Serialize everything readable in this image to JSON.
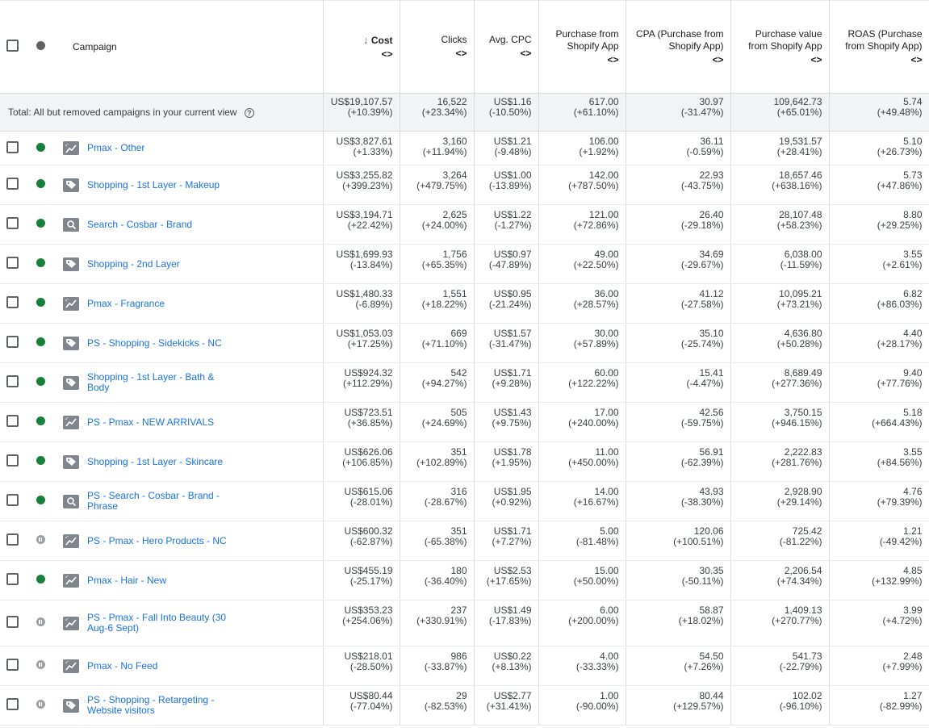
{
  "header": {
    "campaign": "Campaign",
    "sort_arrow": "↓",
    "sort_toggle": "<>",
    "columns": [
      "Cost",
      "Clicks",
      "Avg. CPC",
      "Purchase from Shopify App",
      "CPA (Purchase from Shopify App)",
      "Purchase value from Shopify App",
      "ROAS (Purchase from Shopify App)"
    ]
  },
  "total": {
    "label": "Total: All but removed campaigns in your current view",
    "help": "?",
    "values": [
      [
        "US$19,107.57",
        "(+10.39%)"
      ],
      [
        "16,522",
        "(+23.34%)"
      ],
      [
        "US$1.16",
        "(-10.50%)"
      ],
      [
        "617.00",
        "(+61.10%)"
      ],
      [
        "30.97",
        "(-31.47%)"
      ],
      [
        "109,642.73",
        "(+65.01%)"
      ],
      [
        "5.74",
        "(+49.48%)"
      ]
    ]
  },
  "rows": [
    {
      "name": "Pmax - Other",
      "status": "enabled",
      "type": "pmax",
      "values": [
        [
          "US$3,827.61",
          "(+1.33%)"
        ],
        [
          "3,160",
          "(+11.94%)"
        ],
        [
          "US$1.21",
          "(-9.48%)"
        ],
        [
          "106.00",
          "(+1.92%)"
        ],
        [
          "36.11",
          "(-0.59%)"
        ],
        [
          "19,531.57",
          "(+28.41%)"
        ],
        [
          "5.10",
          "(+26.73%)"
        ]
      ]
    },
    {
      "name": "Shopping - 1st Layer - Makeup",
      "status": "enabled",
      "type": "shopping",
      "values": [
        [
          "US$3,255.82",
          "(+399.23%)"
        ],
        [
          "3,264",
          "(+479.75%)"
        ],
        [
          "US$1.00",
          "(-13.89%)"
        ],
        [
          "142.00",
          "(+787.50%)"
        ],
        [
          "22.93",
          "(-43.75%)"
        ],
        [
          "18,657.46",
          "(+638.16%)"
        ],
        [
          "5.73",
          "(+47.86%)"
        ]
      ]
    },
    {
      "name": "Search - Cosbar - Brand",
      "status": "enabled",
      "type": "search",
      "values": [
        [
          "US$3,194.71",
          "(+22.42%)"
        ],
        [
          "2,625",
          "(+24.00%)"
        ],
        [
          "US$1.22",
          "(-1.27%)"
        ],
        [
          "121.00",
          "(+72.86%)"
        ],
        [
          "26.40",
          "(-29.18%)"
        ],
        [
          "28,107.48",
          "(+58.23%)"
        ],
        [
          "8.80",
          "(+29.25%)"
        ]
      ]
    },
    {
      "name": "Shopping - 2nd Layer",
      "status": "enabled",
      "type": "shopping",
      "values": [
        [
          "US$1,699.93",
          "(-13.84%)"
        ],
        [
          "1,756",
          "(+65.35%)"
        ],
        [
          "US$0.97",
          "(-47.89%)"
        ],
        [
          "49.00",
          "(+22.50%)"
        ],
        [
          "34.69",
          "(-29.67%)"
        ],
        [
          "6,038.00",
          "(-11.59%)"
        ],
        [
          "3.55",
          "(+2.61%)"
        ]
      ]
    },
    {
      "name": "Pmax - Fragrance",
      "status": "enabled",
      "type": "pmax",
      "values": [
        [
          "US$1,480.33",
          "(-6.89%)"
        ],
        [
          "1,551",
          "(+18.22%)"
        ],
        [
          "US$0.95",
          "(-21.24%)"
        ],
        [
          "36.00",
          "(+28.57%)"
        ],
        [
          "41.12",
          "(-27.58%)"
        ],
        [
          "10,095.21",
          "(+73.21%)"
        ],
        [
          "6.82",
          "(+86.03%)"
        ]
      ]
    },
    {
      "name": "PS - Shopping -  Sidekicks - NC",
      "status": "enabled",
      "type": "shopping",
      "values": [
        [
          "US$1,053.03",
          "(+17.25%)"
        ],
        [
          "669",
          "(+71.10%)"
        ],
        [
          "US$1.57",
          "(-31.47%)"
        ],
        [
          "30.00",
          "(+57.89%)"
        ],
        [
          "35.10",
          "(-25.74%)"
        ],
        [
          "4,636.80",
          "(+50.28%)"
        ],
        [
          "4.40",
          "(+28.17%)"
        ]
      ]
    },
    {
      "name": "Shopping - 1st Layer - Bath & Body",
      "status": "enabled",
      "type": "shopping",
      "values": [
        [
          "US$924.32",
          "(+112.29%)"
        ],
        [
          "542",
          "(+94.27%)"
        ],
        [
          "US$1.71",
          "(+9.28%)"
        ],
        [
          "60.00",
          "(+122.22%)"
        ],
        [
          "15.41",
          "(-4.47%)"
        ],
        [
          "8,689.49",
          "(+277.36%)"
        ],
        [
          "9.40",
          "(+77.76%)"
        ]
      ]
    },
    {
      "name": "PS - Pmax - NEW ARRIVALS",
      "status": "enabled",
      "type": "pmax",
      "values": [
        [
          "US$723.51",
          "(+36.85%)"
        ],
        [
          "505",
          "(+24.69%)"
        ],
        [
          "US$1.43",
          "(+9.75%)"
        ],
        [
          "17.00",
          "(+240.00%)"
        ],
        [
          "42.56",
          "(-59.75%)"
        ],
        [
          "3,750.15",
          "(+946.15%)"
        ],
        [
          "5.18",
          "(+664.43%)"
        ]
      ]
    },
    {
      "name": "Shopping - 1st Layer - Skincare",
      "status": "enabled",
      "type": "shopping",
      "values": [
        [
          "US$626.06",
          "(+106.85%)"
        ],
        [
          "351",
          "(+102.89%)"
        ],
        [
          "US$1.78",
          "(+1.95%)"
        ],
        [
          "11.00",
          "(+450.00%)"
        ],
        [
          "56.91",
          "(-62.39%)"
        ],
        [
          "2,222.83",
          "(+281.76%)"
        ],
        [
          "3.55",
          "(+84.56%)"
        ]
      ]
    },
    {
      "name": "PS - Search - Cosbar - Brand - Phrase",
      "status": "enabled",
      "type": "search",
      "values": [
        [
          "US$615.06",
          "(-28.01%)"
        ],
        [
          "316",
          "(-28.67%)"
        ],
        [
          "US$1.95",
          "(+0.92%)"
        ],
        [
          "14.00",
          "(+16.67%)"
        ],
        [
          "43.93",
          "(-38.30%)"
        ],
        [
          "2,928.90",
          "(+29.14%)"
        ],
        [
          "4.76",
          "(+79.39%)"
        ]
      ]
    },
    {
      "name": "PS - Pmax - Hero Products - NC",
      "status": "paused",
      "type": "pmax",
      "values": [
        [
          "US$600.32",
          "(-62.87%)"
        ],
        [
          "351",
          "(-65.38%)"
        ],
        [
          "US$1.71",
          "(+7.27%)"
        ],
        [
          "5.00",
          "(-81.48%)"
        ],
        [
          "120.06",
          "(+100.51%)"
        ],
        [
          "725.42",
          "(-81.22%)"
        ],
        [
          "1.21",
          "(-49.42%)"
        ]
      ]
    },
    {
      "name": "Pmax - Hair - New",
      "status": "enabled",
      "type": "pmax",
      "values": [
        [
          "US$455.19",
          "(-25.17%)"
        ],
        [
          "180",
          "(-36.40%)"
        ],
        [
          "US$2.53",
          "(+17.65%)"
        ],
        [
          "15.00",
          "(+50.00%)"
        ],
        [
          "30.35",
          "(-50.11%)"
        ],
        [
          "2,206.54",
          "(+74.34%)"
        ],
        [
          "4.85",
          "(+132.99%)"
        ]
      ]
    },
    {
      "name": "PS - Pmax - Fall Into Beauty (30 Aug-6 Sept)",
      "status": "paused",
      "type": "pmax",
      "values": [
        [
          "US$353.23",
          "(+254.06%)"
        ],
        [
          "237",
          "(+330.91%)"
        ],
        [
          "US$1.49",
          "(-17.83%)"
        ],
        [
          "6.00",
          "(+200.00%)"
        ],
        [
          "58.87",
          "(+18.02%)"
        ],
        [
          "1,409.13",
          "(+270.77%)"
        ],
        [
          "3.99",
          "(+4.72%)"
        ]
      ]
    },
    {
      "name": "Pmax - No Feed",
      "status": "paused",
      "type": "pmax",
      "values": [
        [
          "US$218.01",
          "(-28.50%)"
        ],
        [
          "986",
          "(-33.87%)"
        ],
        [
          "US$0.22",
          "(+8.13%)"
        ],
        [
          "4.00",
          "(-33.33%)"
        ],
        [
          "54.50",
          "(+7.26%)"
        ],
        [
          "541.73",
          "(-22.79%)"
        ],
        [
          "2.48",
          "(+7.99%)"
        ]
      ]
    },
    {
      "name": "PS - Shopping - Retargeting - Website visitors",
      "status": "paused",
      "type": "shopping",
      "values": [
        [
          "US$80.44",
          "(-77.04%)"
        ],
        [
          "29",
          "(-82.53%)"
        ],
        [
          "US$2.77",
          "(+31.41%)"
        ],
        [
          "1.00",
          "(-90.00%)"
        ],
        [
          "80.44",
          "(+129.57%)"
        ],
        [
          "102.02",
          "(-96.10%)"
        ],
        [
          "1.27",
          "(-82.99%)"
        ]
      ]
    }
  ]
}
